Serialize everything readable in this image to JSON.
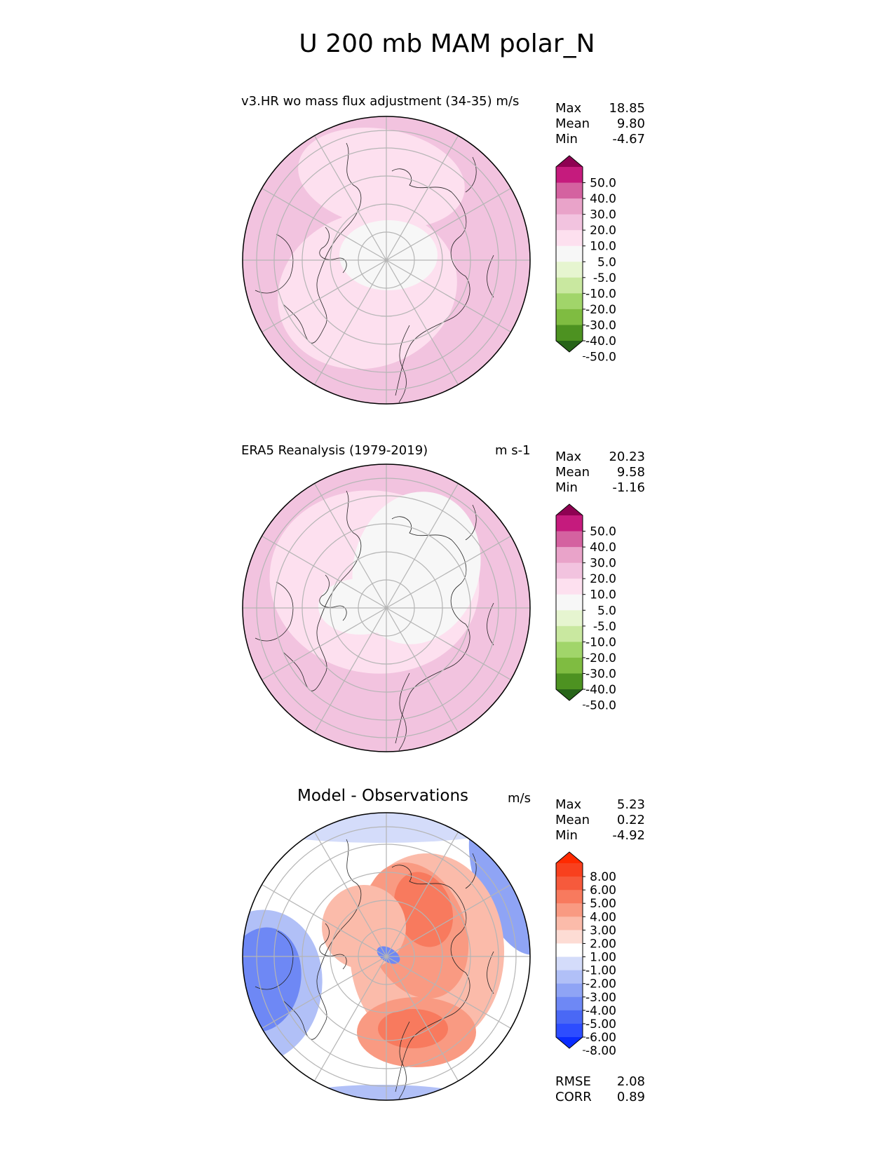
{
  "figure_title": "U 200 mb MAM polar_N",
  "panels": [
    {
      "title_left": "v3.HR wo mass flux adjustment (34-35) m/s",
      "title_right": "",
      "stats": [
        [
          "Max",
          "18.85"
        ],
        [
          "Mean",
          "9.80"
        ],
        [
          "Min",
          "-4.67"
        ]
      ]
    },
    {
      "title_left": "ERA5 Reanalysis (1979-2019)",
      "title_right": "m s-1",
      "stats": [
        [
          "Max",
          "20.23"
        ],
        [
          "Mean",
          "9.58"
        ],
        [
          "Min",
          "-1.16"
        ]
      ]
    },
    {
      "title_left": "Model - Observations",
      "title_right": "m/s",
      "stats": [
        [
          "Max",
          "5.23"
        ],
        [
          "Mean",
          "0.22"
        ],
        [
          "Min",
          "-4.92"
        ]
      ],
      "extra_stats": [
        [
          "RMSE",
          "2.08"
        ],
        [
          "CORR",
          "0.89"
        ]
      ]
    }
  ],
  "chart_data": [
    {
      "type": "heatmap",
      "projection": "north polar stereographic",
      "title": "v3.HR wo mass flux adjustment (34-35) m/s",
      "colorbar_levels": [
        -50,
        -40,
        -30,
        -20,
        -10,
        -5,
        5,
        10,
        20,
        30,
        40,
        50
      ],
      "colorbar_labels": [
        "50.0",
        "40.0",
        "30.0",
        "20.0",
        "10.0",
        "5.0",
        "-5.0",
        "-10.0",
        "-20.0",
        "-30.0",
        "-40.0",
        "-50.0"
      ],
      "colors": [
        "#276419",
        "#4d9221",
        "#7fbc41",
        "#a1d56a",
        "#c9e8a0",
        "#e6f5d0",
        "#f7f7f7",
        "#fde0ef",
        "#f2c3df",
        "#e9a3c9",
        "#d462a0",
        "#c51b7d",
        "#8e0152"
      ],
      "stats": {
        "max": 18.85,
        "mean": 9.8,
        "min": -4.67
      }
    },
    {
      "type": "heatmap",
      "projection": "north polar stereographic",
      "title": "ERA5 Reanalysis (1979-2019)",
      "units": "m s-1",
      "colorbar_levels": [
        -50,
        -40,
        -30,
        -20,
        -10,
        -5,
        5,
        10,
        20,
        30,
        40,
        50
      ],
      "colorbar_labels": [
        "50.0",
        "40.0",
        "30.0",
        "20.0",
        "10.0",
        "5.0",
        "-5.0",
        "-10.0",
        "-20.0",
        "-30.0",
        "-40.0",
        "-50.0"
      ],
      "colors": [
        "#276419",
        "#4d9221",
        "#7fbc41",
        "#a1d56a",
        "#c9e8a0",
        "#e6f5d0",
        "#f7f7f7",
        "#fde0ef",
        "#f2c3df",
        "#e9a3c9",
        "#d462a0",
        "#c51b7d",
        "#8e0152"
      ],
      "stats": {
        "max": 20.23,
        "mean": 9.58,
        "min": -1.16
      }
    },
    {
      "type": "heatmap",
      "projection": "north polar stereographic",
      "title": "Model - Observations",
      "units": "m/s",
      "colorbar_levels": [
        -8,
        -6,
        -5,
        -4,
        -3,
        -2,
        -1,
        1,
        2,
        3,
        4,
        5,
        6,
        8
      ],
      "colorbar_labels": [
        "8.00",
        "6.00",
        "5.00",
        "4.00",
        "3.00",
        "2.00",
        "1.00",
        "-1.00",
        "-2.00",
        "-3.00",
        "-4.00",
        "-5.00",
        "-6.00",
        "-8.00"
      ],
      "colors": [
        "#0a2cff",
        "#2d4dff",
        "#4a68f5",
        "#6e88f5",
        "#8fa4f5",
        "#b1c0f7",
        "#d4dcfa",
        "#ffffff",
        "#fddcd4",
        "#fbbbaa",
        "#f99a82",
        "#f87a5e",
        "#f65a3c",
        "#f8401e",
        "#ff2a00"
      ],
      "stats": {
        "max": 5.23,
        "mean": 0.22,
        "min": -4.92,
        "rmse": 2.08,
        "corr": 0.89
      }
    }
  ]
}
